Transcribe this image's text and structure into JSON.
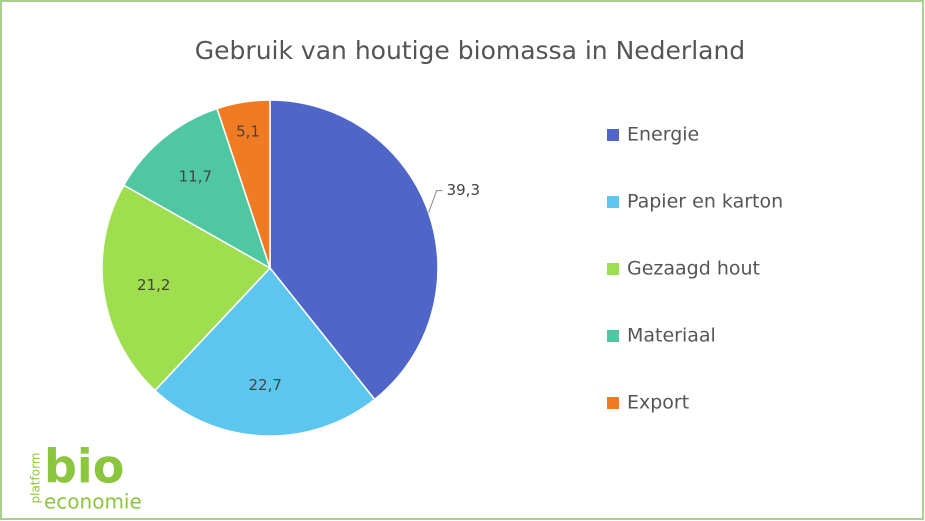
{
  "chart_data": {
    "type": "pie",
    "title": "Gebruik van houtige biomassa in Nederland",
    "categories": [
      "Energie",
      "Papier en karton",
      "Gezaagd hout",
      "Materiaal",
      "Export"
    ],
    "values": [
      39.3,
      22.7,
      21.2,
      11.7,
      5.1
    ],
    "value_labels": [
      "39,3",
      "22,7",
      "21,2",
      "11,7",
      "5,1"
    ],
    "colors": [
      "#4f66c8",
      "#5cc6ef",
      "#9ede4f",
      "#4fc7a2",
      "#f07b22"
    ],
    "legend": "right"
  },
  "logo": {
    "platform": "platform",
    "bio": "bio",
    "economie": "economie"
  }
}
